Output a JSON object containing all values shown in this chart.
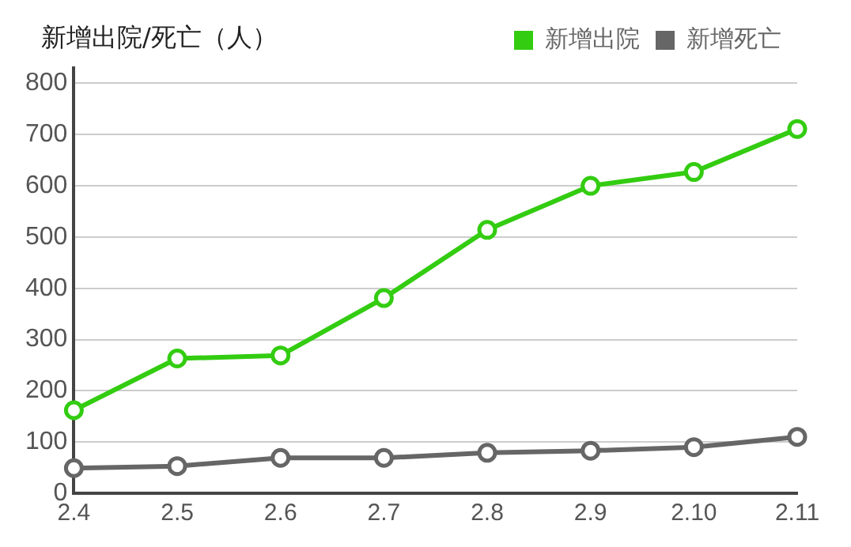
{
  "chart_data": {
    "type": "line",
    "title": "新增出院/死亡（人）",
    "categories": [
      "2.4",
      "2.5",
      "2.6",
      "2.7",
      "2.8",
      "2.9",
      "2.10",
      "2.11"
    ],
    "series": [
      {
        "name": "新增出院",
        "color": "#33cc11",
        "values": [
          162,
          263,
          269,
          381,
          514,
          600,
          627,
          711
        ]
      },
      {
        "name": "新增死亡",
        "color": "#666666",
        "values": [
          49,
          53,
          69,
          69,
          79,
          83,
          90,
          110
        ]
      }
    ],
    "ylim": [
      0,
      830
    ],
    "yticks": [
      0,
      100,
      200,
      300,
      400,
      500,
      600,
      700,
      800
    ],
    "grid": "y",
    "legend": "top right",
    "marker": "circle",
    "line_style": "solid"
  }
}
